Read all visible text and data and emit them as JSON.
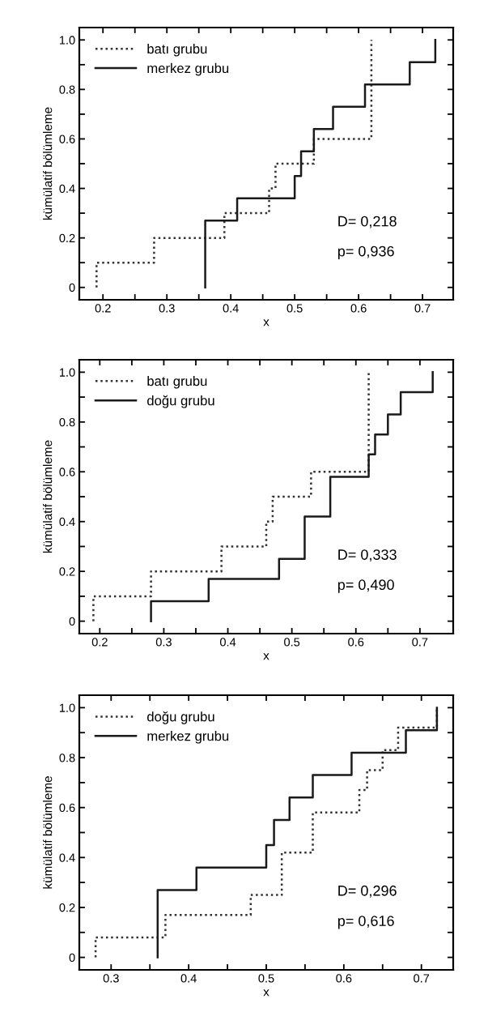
{
  "chart_data": [
    {
      "type": "step",
      "xlabel": "x",
      "ylabel": "kümülatif bölümleme",
      "xlim": [
        0.163,
        0.748
      ],
      "ylim": [
        -0.05,
        1.05
      ],
      "xticks": [
        0.2,
        {
          "value": 0.25,
          "label": null
        },
        0.3,
        {
          "value": 0.35,
          "label": null
        },
        0.4,
        {
          "value": 0.45,
          "label": null
        },
        0.5,
        {
          "value": 0.55,
          "label": null
        },
        0.6,
        {
          "value": 0.65,
          "label": null
        },
        0.7
      ],
      "yticks": [
        0,
        {
          "value": 0.1,
          "label": null
        },
        0.2,
        {
          "value": 0.3,
          "label": null
        },
        0.4,
        {
          "value": 0.5,
          "label": null
        },
        0.6,
        {
          "value": 0.7,
          "label": null
        },
        0.8,
        {
          "value": 0.9,
          "label": null
        },
        {
          "value": 1,
          "label": "1.0"
        }
      ],
      "legend": "top left",
      "grid": false,
      "annotations": [
        "D= 0,218",
        "p= 0,936"
      ],
      "series": [
        {
          "name": "batı grubu",
          "color": "#333333",
          "line_style": "dotted",
          "x": [
            0.19,
            0.19,
            0.28,
            0.39,
            0.46,
            0.47,
            0.53,
            0.62
          ],
          "values": [
            0,
            0.1,
            0.2,
            0.3,
            0.4,
            0.5,
            0.6,
            1.0
          ]
        },
        {
          "name": "merkez grubu",
          "color": "#1a1a1a",
          "line_style": "solid",
          "x": [
            0.36,
            0.36,
            0.41,
            0.5,
            0.51,
            0.53,
            0.56,
            0.61,
            0.68,
            0.72
          ],
          "values": [
            0,
            0.27,
            0.36,
            0.45,
            0.55,
            0.64,
            0.73,
            0.82,
            0.91,
            1.0
          ]
        }
      ]
    },
    {
      "type": "step",
      "xlabel": "x",
      "ylabel": "kümülatif bölümleme",
      "xlim": [
        0.168,
        0.752
      ],
      "ylim": [
        -0.05,
        1.05
      ],
      "xticks": [
        0.2,
        {
          "value": 0.25,
          "label": null
        },
        0.3,
        {
          "value": 0.35,
          "label": null
        },
        0.4,
        {
          "value": 0.45,
          "label": null
        },
        0.5,
        {
          "value": 0.55,
          "label": null
        },
        0.6,
        {
          "value": 0.65,
          "label": null
        },
        0.7
      ],
      "yticks": [
        0,
        {
          "value": 0.1,
          "label": null
        },
        0.2,
        {
          "value": 0.3,
          "label": null
        },
        0.4,
        {
          "value": 0.5,
          "label": null
        },
        0.6,
        {
          "value": 0.7,
          "label": null
        },
        0.8,
        {
          "value": 0.9,
          "label": null
        },
        {
          "value": 1,
          "label": "1.0"
        }
      ],
      "legend": "top left",
      "grid": false,
      "annotations": [
        "D= 0,333",
        "p= 0,490"
      ],
      "series": [
        {
          "name": "batı grubu",
          "color": "#333333",
          "line_style": "dotted",
          "x": [
            0.19,
            0.19,
            0.28,
            0.39,
            0.46,
            0.47,
            0.53,
            0.62
          ],
          "values": [
            0,
            0.1,
            0.2,
            0.3,
            0.4,
            0.5,
            0.6,
            1.0
          ]
        },
        {
          "name": "doğu grubu",
          "color": "#1a1a1a",
          "line_style": "solid",
          "x": [
            0.28,
            0.28,
            0.37,
            0.48,
            0.52,
            0.56,
            0.62,
            0.63,
            0.65,
            0.67,
            0.72
          ],
          "values": [
            0,
            0.08,
            0.17,
            0.25,
            0.42,
            0.58,
            0.67,
            0.75,
            0.83,
            0.92,
            1.0
          ]
        }
      ]
    },
    {
      "type": "step",
      "xlabel": "x",
      "ylabel": "kümülatif bölümleme",
      "xlim": [
        0.259,
        0.741
      ],
      "ylim": [
        -0.05,
        1.05
      ],
      "xticks": [
        0.3,
        {
          "value": 0.35,
          "label": null
        },
        0.4,
        {
          "value": 0.45,
          "label": null
        },
        0.5,
        {
          "value": 0.55,
          "label": null
        },
        0.6,
        {
          "value": 0.65,
          "label": null
        },
        0.7
      ],
      "yticks": [
        0,
        {
          "value": 0.1,
          "label": null
        },
        0.2,
        {
          "value": 0.3,
          "label": null
        },
        0.4,
        {
          "value": 0.5,
          "label": null
        },
        0.6,
        {
          "value": 0.7,
          "label": null
        },
        0.8,
        {
          "value": 0.9,
          "label": null
        },
        {
          "value": 1,
          "label": "1.0"
        }
      ],
      "legend": "top left",
      "grid": false,
      "annotations": [
        "D= 0,296",
        "p= 0,616"
      ],
      "series": [
        {
          "name": "doğu grubu",
          "color": "#333333",
          "line_style": "dotted",
          "x": [
            0.28,
            0.28,
            0.37,
            0.48,
            0.52,
            0.56,
            0.62,
            0.63,
            0.65,
            0.67,
            0.72
          ],
          "values": [
            0,
            0.08,
            0.17,
            0.25,
            0.42,
            0.58,
            0.67,
            0.75,
            0.83,
            0.92,
            1.0
          ]
        },
        {
          "name": "merkez grubu",
          "color": "#1a1a1a",
          "line_style": "solid",
          "x": [
            0.36,
            0.36,
            0.41,
            0.5,
            0.51,
            0.53,
            0.56,
            0.61,
            0.68,
            0.72
          ],
          "values": [
            0,
            0.27,
            0.36,
            0.45,
            0.55,
            0.64,
            0.73,
            0.82,
            0.91,
            1.0
          ]
        }
      ]
    }
  ]
}
